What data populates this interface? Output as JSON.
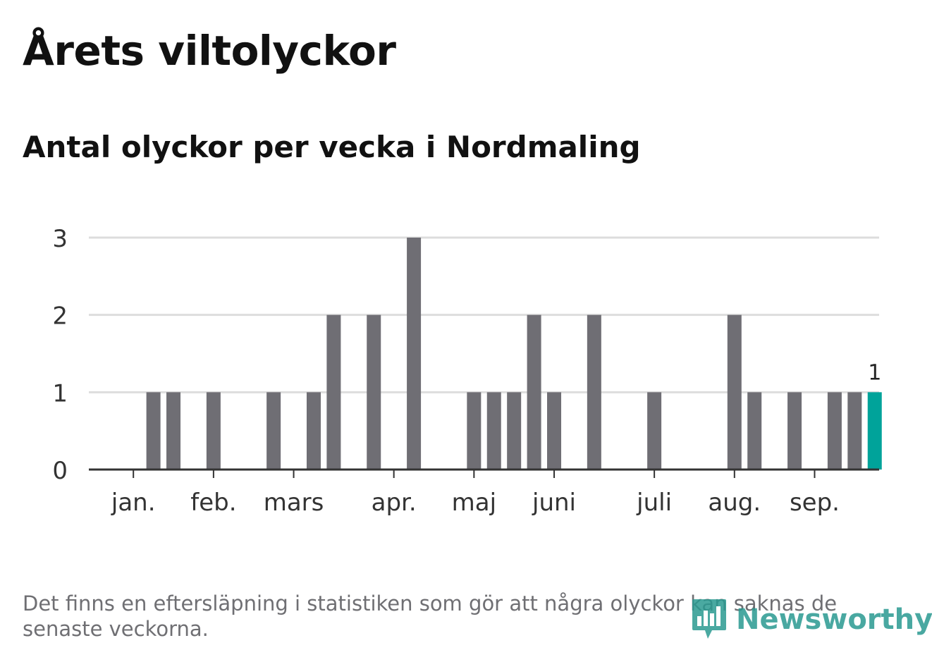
{
  "header": {
    "title": "Årets viltolyckor",
    "subtitle": "Antal olyckor per vecka i Nordmaling"
  },
  "chart_data": {
    "type": "bar",
    "title": "Årets viltolyckor",
    "subtitle": "Antal olyckor per vecka i Nordmaling",
    "xlabel": "",
    "ylabel": "",
    "ylim": [
      0,
      3
    ],
    "yticks": [
      "0",
      "1",
      "2",
      "3"
    ],
    "grid": true,
    "legend": "none",
    "weeks": [
      1,
      2,
      3,
      4,
      5,
      6,
      7,
      8,
      9,
      10,
      11,
      12,
      13,
      14,
      15,
      16,
      17,
      18,
      19,
      20,
      21,
      22,
      23,
      24,
      25,
      26,
      27,
      28,
      29,
      30,
      31,
      32,
      33,
      34,
      35,
      36,
      37,
      38,
      39
    ],
    "values": [
      0,
      1,
      1,
      0,
      1,
      0,
      0,
      1,
      0,
      1,
      2,
      0,
      2,
      0,
      3,
      0,
      0,
      1,
      1,
      1,
      2,
      1,
      0,
      2,
      0,
      0,
      1,
      0,
      0,
      0,
      2,
      1,
      0,
      1,
      0,
      1,
      1,
      1,
      0
    ],
    "month_ticks": [
      {
        "label": "jan.",
        "week": 1.25
      },
      {
        "label": "feb.",
        "week": 5.25
      },
      {
        "label": "mars",
        "week": 9.25
      },
      {
        "label": "apr.",
        "week": 14.25
      },
      {
        "label": "maj",
        "week": 18.25
      },
      {
        "label": "juni",
        "week": 22.25
      },
      {
        "label": "juli",
        "week": 27.25
      },
      {
        "label": "aug.",
        "week": 31.25
      },
      {
        "label": "sep.",
        "week": 35.25
      }
    ],
    "highlight_week": 38,
    "highlight_label": "1",
    "colors": {
      "bar": "#6f6e74",
      "highlight": "#00a39a",
      "grid": "#dddddd",
      "axis": "#333333"
    }
  },
  "footer": {
    "note": "Det finns en eftersläpning i statistiken som gör att några olyckor kan saknas de senaste veckorna.",
    "brand": "Newsworthy",
    "brand_icon": "bar-chart-logo-icon"
  }
}
